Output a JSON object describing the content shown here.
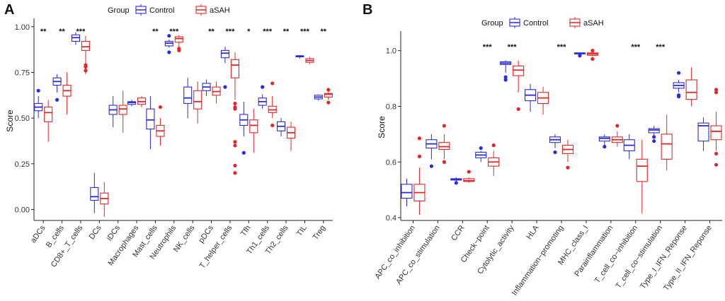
{
  "chart_data": [
    {
      "panel": "A",
      "type": "boxplot",
      "legend_title": "Group",
      "groups": [
        "Control",
        "aSAH"
      ],
      "colors": {
        "Control": "#2b2bd8",
        "aSAH": "#e02828"
      },
      "ylabel": "Score",
      "ylim": [
        -0.06,
        1.03
      ],
      "yticks": [
        "0.00",
        "0.25",
        "0.50",
        "0.75",
        "1.00"
      ],
      "categories": [
        "aDCs",
        "B_cells",
        "CD8+_T_cells",
        "DCs",
        "iDCs",
        "Macrophages",
        "Mast_cells",
        "Neutrophils",
        "NK_cells",
        "pDCs",
        "T_helper_cells",
        "Tfh",
        "Th1_cells",
        "Th2_cells",
        "TIL",
        "Treg"
      ],
      "significance": [
        "**",
        "**",
        "***",
        "",
        "",
        "",
        "**",
        "***",
        "",
        "**",
        "***",
        "*",
        "***",
        "**",
        "***",
        "**"
      ],
      "series": [
        {
          "name": "Control",
          "boxes": [
            {
              "min": 0.5,
              "q1": 0.54,
              "median": 0.56,
              "q3": 0.58,
              "max": 0.62,
              "outliers": [
                0.65
              ]
            },
            {
              "min": 0.64,
              "q1": 0.68,
              "median": 0.7,
              "q3": 0.72,
              "max": 0.74,
              "outliers": [
                0.6
              ]
            },
            {
              "min": 0.9,
              "q1": 0.92,
              "median": 0.94,
              "q3": 0.955,
              "max": 0.97,
              "outliers": []
            },
            {
              "min": -0.02,
              "q1": 0.05,
              "median": 0.07,
              "q3": 0.12,
              "max": 0.2,
              "outliers": []
            },
            {
              "min": 0.45,
              "q1": 0.52,
              "median": 0.545,
              "q3": 0.57,
              "max": 0.62,
              "outliers": []
            },
            {
              "min": 0.565,
              "q1": 0.575,
              "median": 0.585,
              "q3": 0.59,
              "max": 0.6,
              "outliers": []
            },
            {
              "min": 0.33,
              "q1": 0.44,
              "median": 0.49,
              "q3": 0.55,
              "max": 0.62,
              "outliers": []
            },
            {
              "min": 0.885,
              "q1": 0.895,
              "median": 0.91,
              "q3": 0.92,
              "max": 0.93,
              "outliers": [
                0.95,
                0.86
              ]
            },
            {
              "min": 0.5,
              "q1": 0.58,
              "median": 0.61,
              "q3": 0.67,
              "max": 0.72,
              "outliers": []
            },
            {
              "min": 0.62,
              "q1": 0.65,
              "median": 0.67,
              "q3": 0.69,
              "max": 0.71,
              "outliers": []
            },
            {
              "min": 0.8,
              "q1": 0.83,
              "median": 0.855,
              "q3": 0.87,
              "max": 0.89,
              "outliers": [
                0.67
              ]
            },
            {
              "min": 0.4,
              "q1": 0.46,
              "median": 0.49,
              "q3": 0.52,
              "max": 0.59,
              "outliers": [
                0.31
              ]
            },
            {
              "min": 0.55,
              "q1": 0.57,
              "median": 0.59,
              "q3": 0.61,
              "max": 0.63,
              "outliers": [
                0.67
              ]
            },
            {
              "min": 0.4,
              "q1": 0.43,
              "median": 0.455,
              "q3": 0.48,
              "max": 0.5,
              "outliers": []
            },
            {
              "min": 0.825,
              "q1": 0.835,
              "median": 0.84,
              "q3": 0.84,
              "max": 0.845,
              "outliers": []
            },
            {
              "min": 0.595,
              "q1": 0.605,
              "median": 0.615,
              "q3": 0.625,
              "max": 0.63,
              "outliers": []
            }
          ]
        },
        {
          "name": "aSAH",
          "boxes": [
            {
              "min": 0.37,
              "q1": 0.48,
              "median": 0.53,
              "q3": 0.56,
              "max": 0.6,
              "outliers": []
            },
            {
              "min": 0.52,
              "q1": 0.62,
              "median": 0.65,
              "q3": 0.68,
              "max": 0.75,
              "outliers": []
            },
            {
              "min": 0.74,
              "q1": 0.87,
              "median": 0.89,
              "q3": 0.92,
              "max": 0.95,
              "outliers": [
                0.79,
                0.78,
                0.76
              ]
            },
            {
              "min": -0.04,
              "q1": 0.03,
              "median": 0.06,
              "q3": 0.09,
              "max": 0.15,
              "outliers": []
            },
            {
              "min": 0.42,
              "q1": 0.52,
              "median": 0.55,
              "q3": 0.57,
              "max": 0.65,
              "outliers": []
            },
            {
              "min": 0.56,
              "q1": 0.575,
              "median": 0.59,
              "q3": 0.61,
              "max": 0.62,
              "outliers": []
            },
            {
              "min": 0.35,
              "q1": 0.4,
              "median": 0.43,
              "q3": 0.46,
              "max": 0.5,
              "outliers": [
                0.56
              ]
            },
            {
              "min": 0.89,
              "q1": 0.915,
              "median": 0.935,
              "q3": 0.945,
              "max": 0.955,
              "outliers": [
                0.88,
                0.87
              ]
            },
            {
              "min": 0.47,
              "q1": 0.55,
              "median": 0.59,
              "q3": 0.65,
              "max": 0.7,
              "outliers": []
            },
            {
              "min": 0.58,
              "q1": 0.625,
              "median": 0.645,
              "q3": 0.67,
              "max": 0.7,
              "outliers": []
            },
            {
              "min": 0.6,
              "q1": 0.72,
              "median": 0.79,
              "q3": 0.82,
              "max": 0.86,
              "outliers": [
                0.58,
                0.56,
                0.55,
                0.37,
                0.35,
                0.24,
                0.2
              ]
            },
            {
              "min": 0.31,
              "q1": 0.42,
              "median": 0.46,
              "q3": 0.49,
              "max": 0.55,
              "outliers": []
            },
            {
              "min": 0.5,
              "q1": 0.53,
              "median": 0.545,
              "q3": 0.565,
              "max": 0.62,
              "outliers": [
                0.69,
                0.46
              ]
            },
            {
              "min": 0.32,
              "q1": 0.39,
              "median": 0.42,
              "q3": 0.45,
              "max": 0.48,
              "outliers": []
            },
            {
              "min": 0.795,
              "q1": 0.805,
              "median": 0.815,
              "q3": 0.825,
              "max": 0.835,
              "outliers": []
            },
            {
              "min": 0.6,
              "q1": 0.615,
              "median": 0.63,
              "q3": 0.635,
              "max": 0.645,
              "outliers": [
                0.655,
                0.585
              ]
            }
          ]
        }
      ]
    },
    {
      "panel": "B",
      "type": "boxplot",
      "legend_title": "Group",
      "groups": [
        "Control",
        "aSAH"
      ],
      "colors": {
        "Control": "#2b2bd8",
        "aSAH": "#e02828"
      },
      "ylabel": "Score",
      "ylim": [
        0.39,
        1.06
      ],
      "yticks": [
        "0.4",
        "0.6",
        "0.8",
        "1.0"
      ],
      "categories": [
        "APC_co_inhibition",
        "APC_co_stimulation",
        "CCR",
        "Check−point",
        "Cytolytic_activity",
        "HLA",
        "Inflammation−promoting",
        "MHC_class_I",
        "Parainflammation",
        "T_cell_co−inhibition",
        "T_cell_co−stimulation",
        "Type_I_IFN_Reponse",
        "Type_II_IFN_Reponse"
      ],
      "significance": [
        "",
        "",
        "",
        "***",
        "***",
        "",
        "***",
        "",
        "",
        "***",
        "***",
        "",
        ""
      ],
      "series": [
        {
          "name": "Control",
          "boxes": [
            {
              "min": 0.44,
              "q1": 0.47,
              "median": 0.49,
              "q3": 0.52,
              "max": 0.54,
              "outliers": []
            },
            {
              "min": 0.61,
              "q1": 0.65,
              "median": 0.665,
              "q3": 0.68,
              "max": 0.7,
              "outliers": [
                0.585
              ]
            },
            {
              "min": 0.53,
              "q1": 0.535,
              "median": 0.538,
              "q3": 0.54,
              "max": 0.545,
              "outliers": [
                0.525
              ]
            },
            {
              "min": 0.6,
              "q1": 0.615,
              "median": 0.625,
              "q3": 0.635,
              "max": 0.64,
              "outliers": [
                0.65
              ]
            },
            {
              "min": 0.92,
              "q1": 0.95,
              "median": 0.955,
              "q3": 0.96,
              "max": 0.965,
              "outliers": [
                0.905,
                0.895
              ]
            },
            {
              "min": 0.78,
              "q1": 0.82,
              "median": 0.84,
              "q3": 0.86,
              "max": 0.88,
              "outliers": []
            },
            {
              "min": 0.65,
              "q1": 0.67,
              "median": 0.68,
              "q3": 0.69,
              "max": 0.7,
              "outliers": [
                0.635
              ]
            },
            {
              "min": 0.985,
              "q1": 0.988,
              "median": 0.99,
              "q3": 0.992,
              "max": 0.994,
              "outliers": [
                0.982
              ]
            },
            {
              "min": 0.66,
              "q1": 0.675,
              "median": 0.685,
              "q3": 0.69,
              "max": 0.7,
              "outliers": [
                0.655
              ]
            },
            {
              "min": 0.61,
              "q1": 0.64,
              "median": 0.66,
              "q3": 0.68,
              "max": 0.7,
              "outliers": []
            },
            {
              "min": 0.69,
              "q1": 0.705,
              "median": 0.715,
              "q3": 0.72,
              "max": 0.73,
              "outliers": [
                0.69,
                0.675
              ]
            },
            {
              "min": 0.85,
              "q1": 0.865,
              "median": 0.875,
              "q3": 0.885,
              "max": 0.895,
              "outliers": [
                0.92,
                0.84,
                0.835
              ]
            },
            {
              "min": 0.64,
              "q1": 0.675,
              "median": 0.73,
              "q3": 0.74,
              "max": 0.76,
              "outliers": []
            }
          ]
        },
        {
          "name": "aSAH",
          "boxes": [
            {
              "min": 0.41,
              "q1": 0.46,
              "median": 0.49,
              "q3": 0.52,
              "max": 0.58,
              "outliers": [
                0.685,
                0.62
              ]
            },
            {
              "min": 0.61,
              "q1": 0.645,
              "median": 0.655,
              "q3": 0.67,
              "max": 0.7,
              "outliers": [
                0.73,
                0.6
              ]
            },
            {
              "min": 0.525,
              "q1": 0.53,
              "median": 0.533,
              "q3": 0.54,
              "max": 0.545,
              "outliers": [
                0.565
              ]
            },
            {
              "min": 0.55,
              "q1": 0.585,
              "median": 0.6,
              "q3": 0.615,
              "max": 0.64,
              "outliers": [
                0.66
              ]
            },
            {
              "min": 0.85,
              "q1": 0.91,
              "median": 0.93,
              "q3": 0.945,
              "max": 0.965,
              "outliers": [
                0.79
              ]
            },
            {
              "min": 0.77,
              "q1": 0.81,
              "median": 0.83,
              "q3": 0.85,
              "max": 0.87,
              "outliers": []
            },
            {
              "min": 0.6,
              "q1": 0.63,
              "median": 0.645,
              "q3": 0.66,
              "max": 0.68,
              "outliers": [
                0.58
              ]
            },
            {
              "min": 0.978,
              "q1": 0.983,
              "median": 0.988,
              "q3": 0.992,
              "max": 0.995,
              "outliers": [
                0.97,
                1.0
              ]
            },
            {
              "min": 0.655,
              "q1": 0.67,
              "median": 0.68,
              "q3": 0.69,
              "max": 0.71,
              "outliers": [
                0.73
              ]
            },
            {
              "min": 0.415,
              "q1": 0.53,
              "median": 0.585,
              "q3": 0.61,
              "max": 0.68,
              "outliers": []
            },
            {
              "min": 0.57,
              "q1": 0.61,
              "median": 0.665,
              "q3": 0.7,
              "max": 0.77,
              "outliers": []
            },
            {
              "min": 0.8,
              "q1": 0.825,
              "median": 0.85,
              "q3": 0.895,
              "max": 0.94,
              "outliers": []
            },
            {
              "min": 0.64,
              "q1": 0.68,
              "median": 0.71,
              "q3": 0.73,
              "max": 0.78,
              "outliers": [
                0.86,
                0.85,
                0.63,
                0.59
              ]
            }
          ]
        }
      ]
    }
  ]
}
